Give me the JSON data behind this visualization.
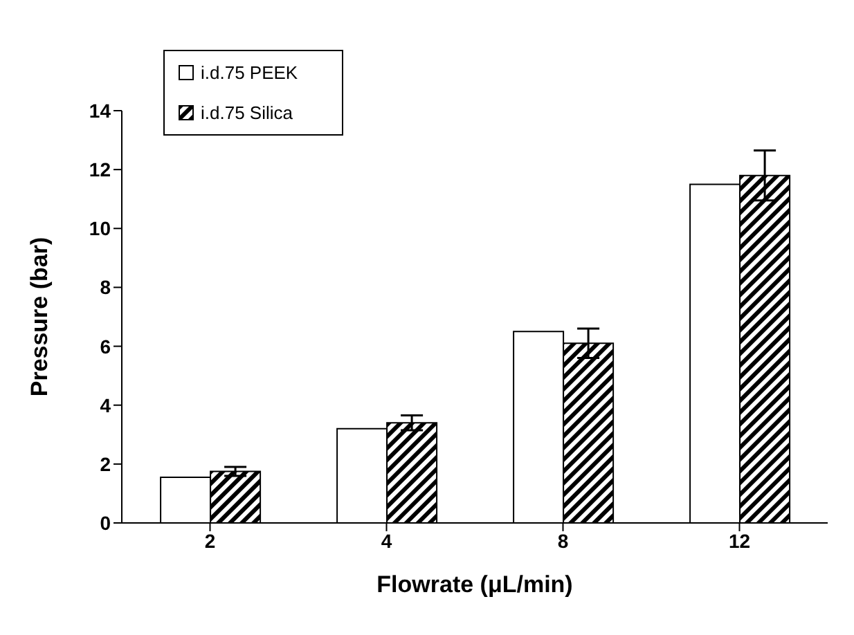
{
  "chart_data": {
    "type": "bar",
    "xlabel": "Flowrate (μL/min)",
    "ylabel": "Pressure (bar)",
    "categories": [
      "2",
      "4",
      "8",
      "12"
    ],
    "series": [
      {
        "name": "i.d.75 PEEK",
        "color": "#ffffff",
        "values": [
          1.55,
          3.2,
          6.5,
          11.5
        ]
      },
      {
        "name": "i.d.75 Silica",
        "color": "#000000",
        "values": [
          1.75,
          3.4,
          6.1,
          11.8
        ],
        "errors": [
          0.15,
          0.25,
          0.5,
          0.85
        ]
      }
    ],
    "ylim": [
      0,
      14
    ],
    "yticks": [
      0,
      2,
      4,
      6,
      8,
      10,
      12,
      14
    ],
    "grid": false,
    "legend": "top left"
  }
}
